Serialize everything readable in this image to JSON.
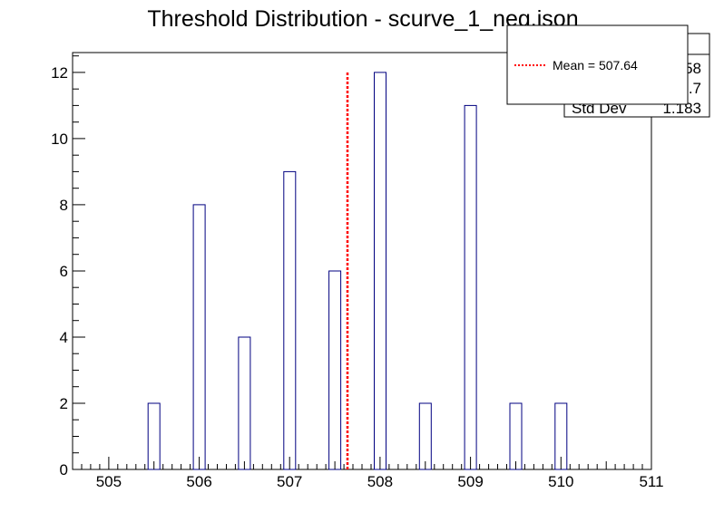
{
  "chart_data": {
    "type": "bar",
    "title": "Threshold Distribution - scurve_1_neg.json",
    "xlabel": "",
    "ylabel": "",
    "xlim": [
      504.6,
      511
    ],
    "ylim": [
      0,
      12.6
    ],
    "x_ticks": [
      "505",
      "506",
      "507",
      "508",
      "509",
      "510",
      "511"
    ],
    "y_ticks": [
      "0",
      "2",
      "4",
      "6",
      "8",
      "10",
      "12"
    ],
    "bin_width": 0.13,
    "bins": [
      {
        "x": 505.5,
        "count": 2
      },
      {
        "x": 506.0,
        "count": 8
      },
      {
        "x": 506.5,
        "count": 4
      },
      {
        "x": 507.0,
        "count": 9
      },
      {
        "x": 507.5,
        "count": 6
      },
      {
        "x": 508.0,
        "count": 12
      },
      {
        "x": 508.5,
        "count": 2
      },
      {
        "x": 509.0,
        "count": 11
      },
      {
        "x": 509.5,
        "count": 2
      },
      {
        "x": 510.0,
        "count": 2
      }
    ],
    "mean_line": {
      "x": 507.64,
      "y_top": 12,
      "color": "#ff0000"
    },
    "legend": {
      "placement": "top-right",
      "label": "Mean = 507.64"
    },
    "stats_box": {
      "rows": [
        {
          "label": "",
          "value": "58"
        },
        {
          "label": "",
          "value": ".7"
        },
        {
          "label": "Std Dev",
          "value": "1.183"
        }
      ]
    },
    "bar_color": "#000080"
  }
}
